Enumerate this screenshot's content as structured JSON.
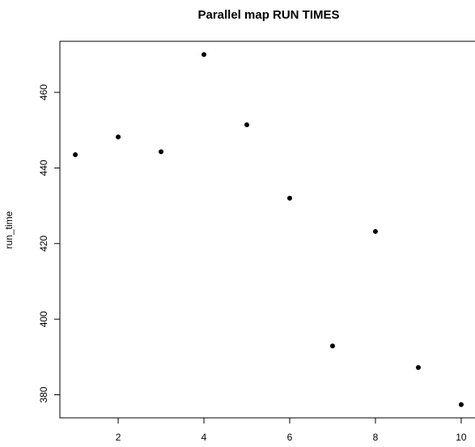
{
  "chart_data": {
    "type": "scatter",
    "title": "Parallel map RUN TIMES",
    "xlabel": "",
    "ylabel": "run_time",
    "x": [
      1,
      2,
      3,
      4,
      5,
      6,
      7,
      8,
      9,
      10
    ],
    "y": [
      443.5,
      448.2,
      444.3,
      470.0,
      451.4,
      432.0,
      392.9,
      423.2,
      387.2,
      377.4
    ],
    "x_ticks": [
      2,
      4,
      6,
      8,
      10
    ],
    "y_ticks": [
      380,
      400,
      420,
      440,
      460
    ],
    "x_tick_labels": [
      "2",
      "4",
      "6",
      "8",
      "10"
    ],
    "y_tick_labels": [
      "380",
      "400",
      "420",
      "440",
      "460"
    ],
    "xlim": [
      0.64,
      10.36
    ],
    "ylim": [
      373.9,
      473.5
    ],
    "grid": false,
    "point_color": "#000000"
  }
}
